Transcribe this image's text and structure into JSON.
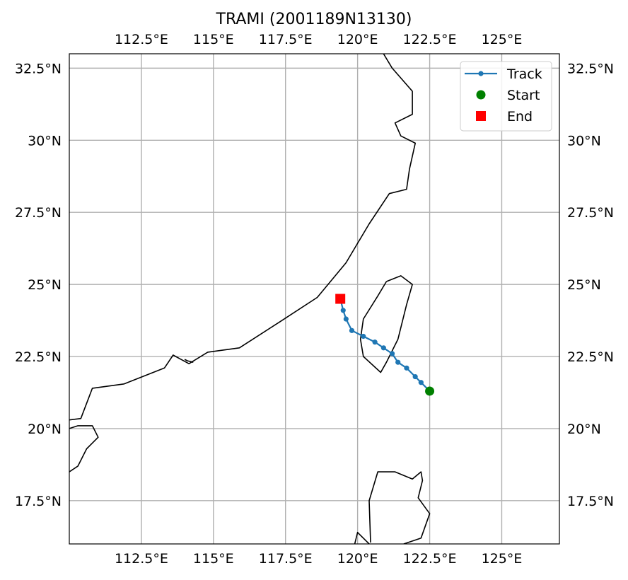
{
  "title": "TRAMI (2001189N13130)",
  "map": {
    "lon_range": [
      110.0,
      127.0
    ],
    "lat_range": [
      16.0,
      33.0
    ],
    "grid": true,
    "lon_ticks": [
      {
        "value": 112.5,
        "label": "112.5°E"
      },
      {
        "value": 115.0,
        "label": "115°E"
      },
      {
        "value": 117.5,
        "label": "117.5°E"
      },
      {
        "value": 120.0,
        "label": "120°E"
      },
      {
        "value": 122.5,
        "label": "122.5°E"
      },
      {
        "value": 125.0,
        "label": "125°E"
      }
    ],
    "lat_ticks": [
      {
        "value": 17.5,
        "label": "17.5°N"
      },
      {
        "value": 20.0,
        "label": "20°N"
      },
      {
        "value": 22.5,
        "label": "22.5°N"
      },
      {
        "value": 25.0,
        "label": "25°N"
      },
      {
        "value": 27.5,
        "label": "27.5°N"
      },
      {
        "value": 30.0,
        "label": "30°N"
      },
      {
        "value": 32.5,
        "label": "32.5°N"
      }
    ],
    "coastlines": [
      [
        [
          120.9,
          33.0
        ],
        [
          121.2,
          32.5
        ],
        [
          121.9,
          31.7
        ],
        [
          121.9,
          30.9
        ],
        [
          121.3,
          30.6
        ],
        [
          121.5,
          30.15
        ],
        [
          122.0,
          29.9
        ],
        [
          121.8,
          29.0
        ],
        [
          121.7,
          28.3
        ],
        [
          121.1,
          28.15
        ],
        [
          120.4,
          27.1
        ],
        [
          119.6,
          25.75
        ],
        [
          118.6,
          24.55
        ],
        [
          117.3,
          23.7
        ],
        [
          115.9,
          22.8
        ],
        [
          114.8,
          22.65
        ],
        [
          114.15,
          22.25
        ],
        [
          113.6,
          22.55
        ],
        [
          113.3,
          22.1
        ],
        [
          111.9,
          21.55
        ],
        [
          110.8,
          21.4
        ],
        [
          110.4,
          20.35
        ],
        [
          110.0,
          20.3
        ]
      ],
      [
        [
          110.0,
          20.0
        ],
        [
          110.3,
          20.1
        ],
        [
          110.8,
          20.1
        ],
        [
          111.0,
          19.7
        ],
        [
          110.6,
          19.3
        ],
        [
          110.3,
          18.7
        ],
        [
          110.0,
          18.5
        ]
      ],
      [
        [
          121.0,
          25.1
        ],
        [
          121.5,
          25.3
        ],
        [
          121.9,
          25.0
        ],
        [
          121.7,
          24.3
        ],
        [
          121.4,
          23.1
        ],
        [
          121.0,
          22.3
        ],
        [
          120.8,
          21.95
        ],
        [
          120.2,
          22.5
        ],
        [
          120.1,
          23.1
        ],
        [
          120.2,
          23.8
        ],
        [
          120.7,
          24.6
        ],
        [
          121.0,
          25.1
        ]
      ],
      [
        [
          114.0,
          22.4
        ],
        [
          114.1,
          22.35
        ],
        [
          114.3,
          22.3
        ]
      ],
      [
        [
          119.9,
          16.0
        ],
        [
          120.0,
          16.4
        ],
        [
          120.3,
          16.1
        ],
        [
          120.4,
          16.0
        ]
      ],
      [
        [
          120.45,
          16.05
        ],
        [
          120.4,
          17.5
        ],
        [
          120.7,
          18.5
        ],
        [
          121.3,
          18.5
        ],
        [
          121.9,
          18.25
        ],
        [
          122.2,
          18.5
        ],
        [
          122.25,
          18.2
        ],
        [
          122.1,
          17.6
        ],
        [
          122.5,
          17.05
        ],
        [
          122.2,
          16.2
        ],
        [
          121.6,
          16.0
        ]
      ]
    ]
  },
  "chart_data": {
    "type": "line",
    "title": "TRAMI (2001189N13130)",
    "xlabel": "",
    "ylabel": "",
    "xlim": [
      110.0,
      127.0
    ],
    "ylim": [
      16.0,
      33.0
    ],
    "series": [
      {
        "name": "Track",
        "color": "#1f77b4",
        "points": [
          {
            "lon": 122.5,
            "lat": 21.3
          },
          {
            "lon": 122.2,
            "lat": 21.6
          },
          {
            "lon": 122.0,
            "lat": 21.8
          },
          {
            "lon": 121.7,
            "lat": 22.1
          },
          {
            "lon": 121.4,
            "lat": 22.3
          },
          {
            "lon": 121.2,
            "lat": 22.6
          },
          {
            "lon": 120.9,
            "lat": 22.8
          },
          {
            "lon": 120.6,
            "lat": 23.0
          },
          {
            "lon": 120.2,
            "lat": 23.2
          },
          {
            "lon": 119.8,
            "lat": 23.4
          },
          {
            "lon": 119.6,
            "lat": 23.8
          },
          {
            "lon": 119.5,
            "lat": 24.1
          },
          {
            "lon": 119.4,
            "lat": 24.5
          }
        ]
      }
    ],
    "start": {
      "name": "Start",
      "lon": 122.5,
      "lat": 21.3,
      "color": "#008000",
      "marker": "circle"
    },
    "end": {
      "name": "End",
      "lon": 119.4,
      "lat": 24.5,
      "color": "#ff0000",
      "marker": "square"
    }
  },
  "legend": {
    "placement": "top-right",
    "entries": [
      {
        "label": "Track",
        "color": "#1f77b4",
        "marker": "line-dot"
      },
      {
        "label": "Start",
        "color": "#008000",
        "marker": "circle"
      },
      {
        "label": "End",
        "color": "#ff0000",
        "marker": "square"
      }
    ]
  }
}
